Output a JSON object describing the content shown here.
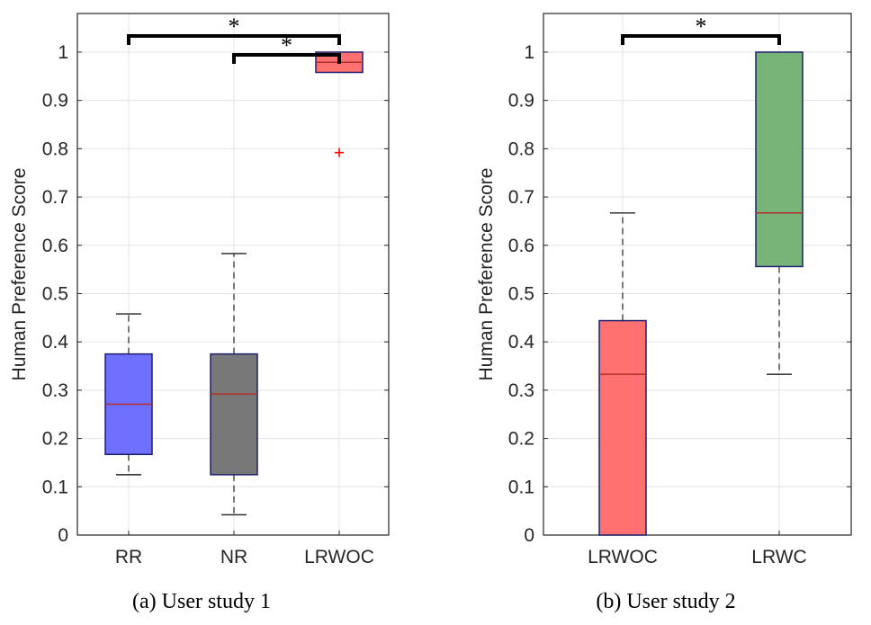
{
  "chart_data": [
    {
      "type": "box",
      "caption": "(a) User study 1",
      "ylabel": "Human Preference Score",
      "ylim": [
        0,
        1.08
      ],
      "yticks": [
        "0",
        "0.1",
        "0.2",
        "0.3",
        "0.4",
        "0.5",
        "0.6",
        "0.7",
        "0.8",
        "0.9",
        "1"
      ],
      "grid": true,
      "categories": [
        "RR",
        "NR",
        "LRWOC"
      ],
      "boxes": [
        {
          "label": "RR",
          "whisker_low": 0.125,
          "q1": 0.167,
          "median": 0.271,
          "q3": 0.375,
          "whisker_high": 0.458,
          "outliers": [],
          "color": "#7070ff"
        },
        {
          "label": "NR",
          "whisker_low": 0.042,
          "q1": 0.125,
          "median": 0.292,
          "q3": 0.375,
          "whisker_high": 0.583,
          "outliers": [],
          "color": "#787878"
        },
        {
          "label": "LRWOC",
          "whisker_low": 0.958,
          "q1": 0.958,
          "median": 0.979,
          "q3": 1.0,
          "whisker_high": 1.0,
          "outliers": [
            0.792
          ],
          "color": "#ff7070"
        }
      ],
      "significance": [
        {
          "from": "RR",
          "to": "LRWOC",
          "label": "*"
        },
        {
          "from": "NR",
          "to": "LRWOC",
          "label": "*"
        }
      ]
    },
    {
      "type": "box",
      "caption": "(b) User study 2",
      "ylabel": "Human Preference Score",
      "ylim": [
        0,
        1.08
      ],
      "yticks": [
        "0",
        "0.1",
        "0.2",
        "0.3",
        "0.4",
        "0.5",
        "0.6",
        "0.7",
        "0.8",
        "0.9",
        "1"
      ],
      "grid": true,
      "categories": [
        "LRWOC",
        "LRWC"
      ],
      "boxes": [
        {
          "label": "LRWOC",
          "whisker_low": 0.0,
          "q1": 0.0,
          "median": 0.333,
          "q3": 0.444,
          "whisker_high": 0.667,
          "outliers": [],
          "color": "#ff7070"
        },
        {
          "label": "LRWC",
          "whisker_low": 0.333,
          "q1": 0.556,
          "median": 0.667,
          "q3": 1.0,
          "whisker_high": 1.0,
          "outliers": [],
          "color": "#78b478"
        }
      ],
      "significance": [
        {
          "from": "LRWOC",
          "to": "LRWC",
          "label": "*"
        }
      ]
    }
  ],
  "colors": {
    "axis": "#262626",
    "grid": "#e3e3e3",
    "box_edge": "#1e1e6e",
    "median_line": "#b03030",
    "outlier": "#ff0000",
    "bracket": "#000000"
  }
}
